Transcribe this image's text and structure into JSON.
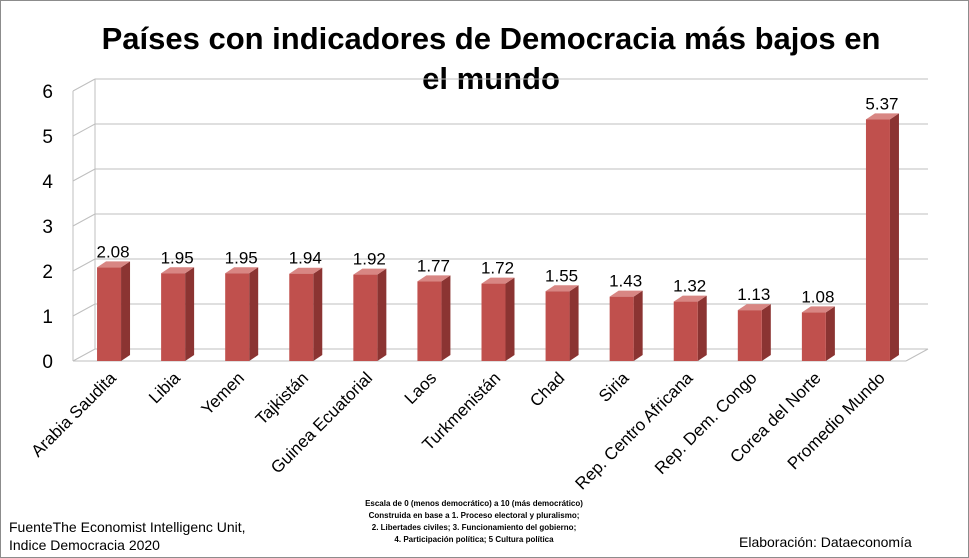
{
  "chart_data": {
    "type": "bar",
    "title": "Países con indicadores de Democracia más bajos en el mundo",
    "categories": [
      "Arabia Saudita",
      "Libia",
      "Yemen",
      "Tajkistán",
      "Guinea Ecuatorial",
      "Laos",
      "Turkmenistán",
      "Chad",
      "Siria",
      "Rep. Centro Africana",
      "Rep. Dem. Congo",
      "Corea del Norte",
      "Promedio Mundo"
    ],
    "values": [
      2.08,
      1.95,
      1.95,
      1.94,
      1.92,
      1.77,
      1.72,
      1.55,
      1.43,
      1.32,
      1.13,
      1.08,
      5.37
    ],
    "value_labels": [
      "2.08",
      "1.95",
      "1.95",
      "1.94",
      "1.92",
      "1.77",
      "1.72",
      "1.55",
      "1.43",
      "1.32",
      "1.13",
      "1.08",
      "5.37"
    ],
    "yticks": [
      "0",
      "1",
      "2",
      "3",
      "4",
      "5",
      "6"
    ],
    "ylim": [
      0,
      6
    ],
    "grid": true,
    "legend": "none",
    "bar_color": "#c0504d",
    "bar_side_color": "#8b3432",
    "bar_top_color": "#d88683"
  },
  "footer": {
    "source_line1": "FuenteThe Economist Intelligenc Unit,",
    "source_line2": "Indice Democracia 2020",
    "scale_note": [
      "Escala de 0 (menos democrático) a 10 (más democrático)",
      "Construida en base a 1. Proceso electoral y pluralismo;",
      "2. Libertades civiles; 3. Funcionamiento del gobierno;",
      "4. Participación política; 5 Cultura política"
    ],
    "credit": "Elaboración: Dataeconomía"
  }
}
